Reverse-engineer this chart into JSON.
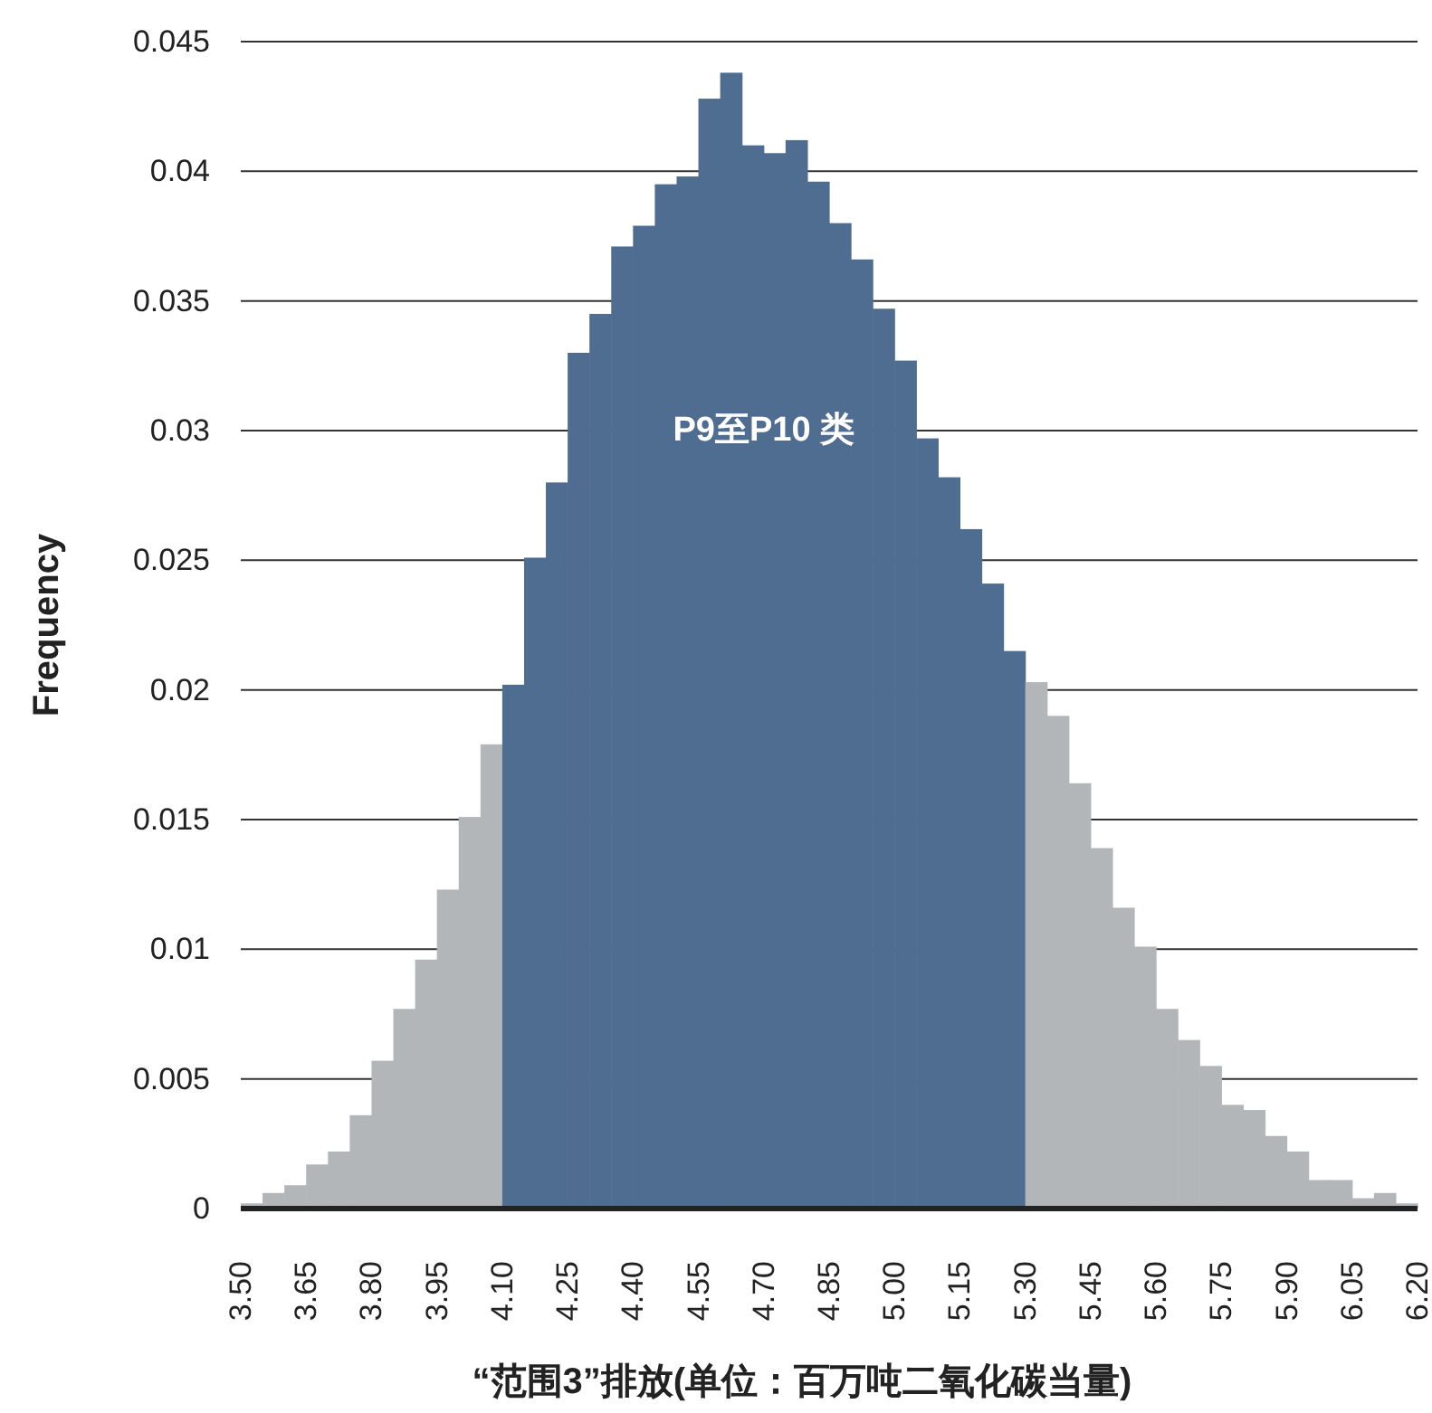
{
  "chart_data": {
    "type": "histogram",
    "xlabel": "“范围3”排放(单位：百万吨二氧化碳当量)",
    "ylabel": "Frequency",
    "bins": [
      3.5,
      3.55,
      3.6,
      3.65,
      3.7,
      3.75,
      3.8,
      3.85,
      3.9,
      3.95,
      4.0,
      4.05,
      4.1,
      4.15,
      4.2,
      4.25,
      4.3,
      4.35,
      4.4,
      4.45,
      4.5,
      4.55,
      4.6,
      4.65,
      4.7,
      4.75,
      4.8,
      4.85,
      4.9,
      4.95,
      5.0,
      5.05,
      5.1,
      5.15,
      5.2,
      5.25,
      5.3,
      5.35,
      5.4,
      5.45,
      5.5,
      5.55,
      5.6,
      5.65,
      5.7,
      5.75,
      5.8,
      5.85,
      5.9,
      5.95,
      6.0,
      6.05,
      6.1,
      6.15,
      6.2
    ],
    "values": [
      0.0002,
      0.0006,
      0.0009,
      0.0017,
      0.0022,
      0.0036,
      0.0057,
      0.0077,
      0.0096,
      0.0123,
      0.0151,
      0.0179,
      0.0202,
      0.0251,
      0.028,
      0.033,
      0.0345,
      0.0371,
      0.0379,
      0.0395,
      0.0398,
      0.0428,
      0.0438,
      0.041,
      0.0407,
      0.0412,
      0.0396,
      0.038,
      0.0366,
      0.0347,
      0.0327,
      0.0297,
      0.0282,
      0.0262,
      0.0241,
      0.0215,
      0.0203,
      0.019,
      0.0164,
      0.0139,
      0.0116,
      0.0101,
      0.0077,
      0.0065,
      0.0055,
      0.004,
      0.0038,
      0.0028,
      0.0022,
      0.0011,
      0.0011,
      0.0004,
      0.0006,
      0.0002
    ],
    "colors": [
      "#b3b6b9",
      "#b3b6b9",
      "#b3b6b9",
      "#b3b6b9",
      "#b3b6b9",
      "#b3b6b9",
      "#b3b6b9",
      "#b3b6b9",
      "#b3b6b9",
      "#b3b6b9",
      "#b3b6b9",
      "#b3b6b9",
      "#4f6d91",
      "#4f6d91",
      "#4f6d91",
      "#4f6d91",
      "#4f6d91",
      "#4f6d91",
      "#4f6d91",
      "#4f6d91",
      "#4f6d91",
      "#4f6d91",
      "#4f6d91",
      "#4f6d91",
      "#4f6d91",
      "#4f6d91",
      "#4f6d91",
      "#4f6d91",
      "#4f6d91",
      "#4f6d91",
      "#4f6d91",
      "#4f6d91",
      "#4f6d91",
      "#4f6d91",
      "#4f6d91",
      "#4f6d91",
      "#b3b6b9",
      "#b3b6b9",
      "#b3b6b9",
      "#b3b6b9",
      "#b3b6b9",
      "#b3b6b9",
      "#b3b6b9",
      "#b3b6b9",
      "#b3b6b9",
      "#b3b6b9",
      "#b3b6b9",
      "#b3b6b9",
      "#b3b6b9",
      "#b3b6b9",
      "#b3b6b9",
      "#b3b6b9",
      "#b3b6b9",
      "#b3b6b9"
    ],
    "xlim": [
      3.5,
      6.2
    ],
    "ylim": [
      0,
      0.045
    ],
    "xticks": [
      {
        "value": 3.5,
        "label": "3.50"
      },
      {
        "value": 3.65,
        "label": "3.65"
      },
      {
        "value": 3.8,
        "label": "3.80"
      },
      {
        "value": 3.95,
        "label": "3.95"
      },
      {
        "value": 4.1,
        "label": "4.10"
      },
      {
        "value": 4.25,
        "label": "4.25"
      },
      {
        "value": 4.4,
        "label": "4.40"
      },
      {
        "value": 4.55,
        "label": "4.55"
      },
      {
        "value": 4.7,
        "label": "4.70"
      },
      {
        "value": 4.85,
        "label": "4.85"
      },
      {
        "value": 5.0,
        "label": "5.00"
      },
      {
        "value": 5.15,
        "label": "5.15"
      },
      {
        "value": 5.3,
        "label": "5.30"
      },
      {
        "value": 5.45,
        "label": "5.45"
      },
      {
        "value": 5.6,
        "label": "5.60"
      },
      {
        "value": 5.75,
        "label": "5.75"
      },
      {
        "value": 5.9,
        "label": "5.90"
      },
      {
        "value": 6.05,
        "label": "6.05"
      },
      {
        "value": 6.2,
        "label": "6.20"
      }
    ],
    "yticks": [
      0,
      0.005,
      0.01,
      0.015,
      0.02,
      0.025,
      0.03,
      0.035,
      0.04,
      0.045
    ],
    "grid": "y",
    "annotations": [
      {
        "text": "P9至P10 类",
        "x": 4.7,
        "y": 0.03
      }
    ]
  }
}
